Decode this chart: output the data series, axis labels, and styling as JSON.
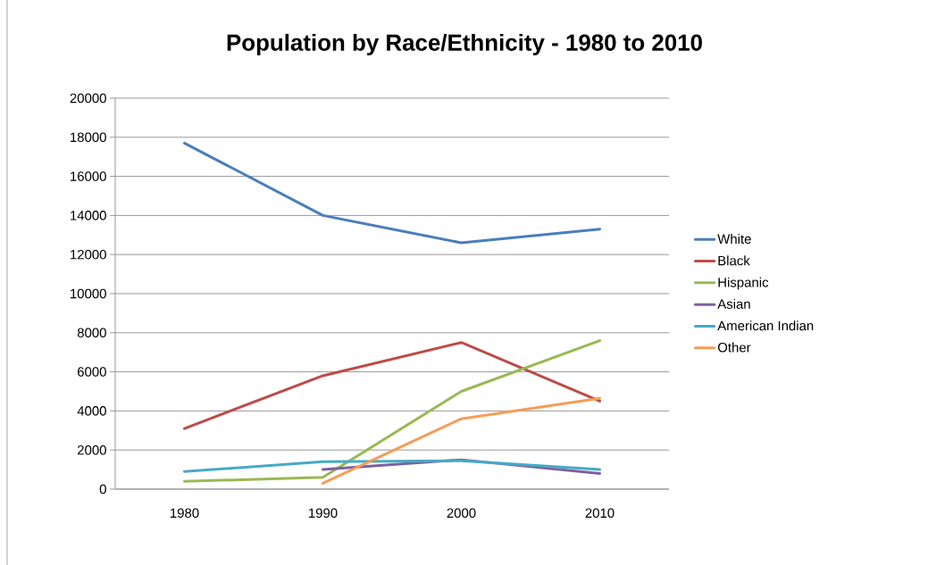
{
  "chart_data": {
    "type": "line",
    "title": "Population by Race/Ethnicity  - 1980 to 2010",
    "categories": [
      "1980",
      "1990",
      "2000",
      "2010"
    ],
    "series": [
      {
        "name": "White",
        "color": "#4a7ebb",
        "values": [
          17700,
          14000,
          12600,
          13300
        ]
      },
      {
        "name": "Black",
        "color": "#be4b48",
        "values": [
          3100,
          5800,
          7500,
          4500
        ]
      },
      {
        "name": "Hispanic",
        "color": "#98b954",
        "values": [
          400,
          600,
          5000,
          7600
        ]
      },
      {
        "name": "Asian",
        "color": "#7d60a0",
        "values": [
          null,
          1000,
          1500,
          800
        ]
      },
      {
        "name": "American Indian",
        "color": "#46aac5",
        "values": [
          900,
          1400,
          1450,
          1000
        ]
      },
      {
        "name": "Other",
        "color": "#f59d56",
        "values": [
          null,
          300,
          3600,
          4650
        ]
      }
    ],
    "ylim": [
      0,
      20000
    ],
    "yticks": [
      0,
      2000,
      4000,
      6000,
      8000,
      10000,
      12000,
      14000,
      16000,
      18000,
      20000
    ],
    "grid": "y",
    "legend": "right",
    "marker": "none",
    "line_style": "solid"
  }
}
